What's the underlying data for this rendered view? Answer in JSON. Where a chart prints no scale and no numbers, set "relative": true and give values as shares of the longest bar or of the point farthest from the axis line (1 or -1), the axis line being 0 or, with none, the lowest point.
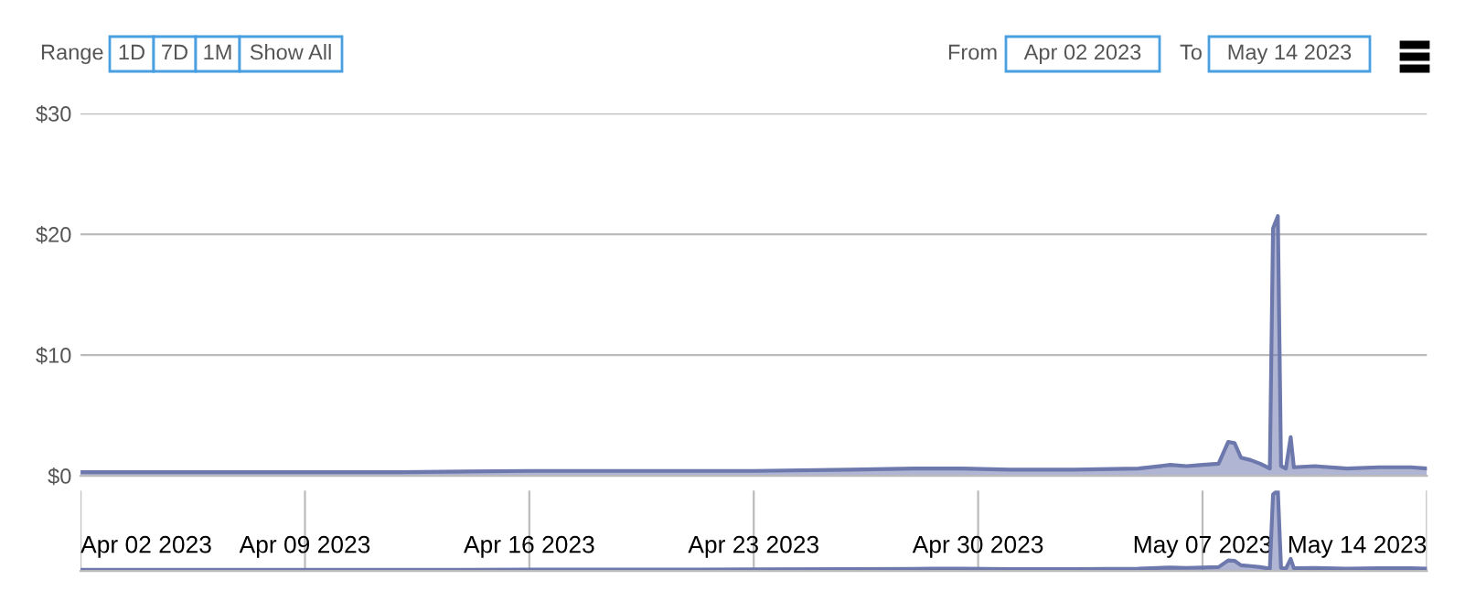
{
  "chart_data": [
    {
      "type": "area",
      "x": [
        "2023-04-02",
        "2023-04-05",
        "2023-04-09",
        "2023-04-12",
        "2023-04-16",
        "2023-04-20",
        "2023-04-23",
        "2023-04-26",
        "2023-04-28",
        "2023-04-29T12:00",
        "2023-05-01",
        "2023-05-03",
        "2023-05-05",
        "2023-05-06",
        "2023-05-06T12:00",
        "2023-05-07",
        "2023-05-07T12:00",
        "2023-05-07T19:12",
        "2023-05-08",
        "2023-05-08T04:48",
        "2023-05-08T12:00",
        "2023-05-08T19:12",
        "2023-05-09T02:24",
        "2023-05-09T04:48",
        "2023-05-09T08:24",
        "2023-05-09T10:48",
        "2023-05-09T14:24",
        "2023-05-09T18:00",
        "2023-05-09T20:24",
        "2023-05-10T12:00",
        "2023-05-11T12:00",
        "2023-05-12T12:00",
        "2023-05-13T12:00",
        "2023-05-14"
      ],
      "series": [
        {
          "color": "#6d78ad",
          "values": [
            0.3,
            0.3,
            0.3,
            0.3,
            0.4,
            0.4,
            0.4,
            0.5,
            0.6,
            0.6,
            0.5,
            0.5,
            0.6,
            0.9,
            0.8,
            0.9,
            1.0,
            2.8,
            2.7,
            1.5,
            1.3,
            1.0,
            0.6,
            20.5,
            21.5,
            0.8,
            0.6,
            3.2,
            0.7,
            0.8,
            0.6,
            0.7,
            0.7,
            0.6
          ]
        }
      ],
      "xlim": [
        "2023-04-02",
        "2023-05-14"
      ],
      "ylim": [
        0,
        30
      ],
      "yticks": [
        {
          "value": 0,
          "label": "$0"
        },
        {
          "value": 10,
          "label": "$10"
        },
        {
          "value": 20,
          "label": "$20"
        },
        {
          "value": 30,
          "label": "$30"
        }
      ],
      "grid": "y",
      "tick_labels": "y",
      "annotations": [
        "Range",
        "1D",
        "7D",
        "1M",
        "Show All",
        "From",
        "Apr 02 2023",
        "To",
        "May 14 2023"
      ]
    },
    {
      "type": "area",
      "relative": true,
      "x": [
        "2023-04-02",
        "2023-04-05",
        "2023-04-09",
        "2023-04-12",
        "2023-04-16",
        "2023-04-20",
        "2023-04-23",
        "2023-04-26",
        "2023-04-28",
        "2023-04-29T12:00",
        "2023-05-01",
        "2023-05-03",
        "2023-05-05",
        "2023-05-06",
        "2023-05-06T12:00",
        "2023-05-07",
        "2023-05-07T12:00",
        "2023-05-07T19:12",
        "2023-05-08",
        "2023-05-08T04:48",
        "2023-05-08T12:00",
        "2023-05-08T19:12",
        "2023-05-09T02:24",
        "2023-05-09T04:48",
        "2023-05-09T08:24",
        "2023-05-09T10:48",
        "2023-05-09T14:24",
        "2023-05-09T18:00",
        "2023-05-09T20:24",
        "2023-05-10T12:00",
        "2023-05-11T12:00",
        "2023-05-12T12:00",
        "2023-05-13T12:00",
        "2023-05-14"
      ],
      "series": [
        {
          "color": "#6d78ad",
          "values": [
            0.014,
            0.014,
            0.014,
            0.014,
            0.016,
            0.016,
            0.019,
            0.021,
            0.026,
            0.028,
            0.023,
            0.021,
            0.028,
            0.042,
            0.037,
            0.042,
            0.047,
            0.13,
            0.126,
            0.07,
            0.06,
            0.047,
            0.028,
            0.953,
            1,
            0.037,
            0.028,
            0.149,
            0.033,
            0.037,
            0.028,
            0.033,
            0.033,
            0.028
          ]
        }
      ],
      "xlim": [
        "2023-04-02",
        "2023-05-14"
      ],
      "xticks": [
        {
          "value": "2023-04-02",
          "label": "Apr 02 2023"
        },
        {
          "value": "2023-04-09",
          "label": "Apr 09 2023"
        },
        {
          "value": "2023-04-16",
          "label": "Apr 16 2023"
        },
        {
          "value": "2023-04-23",
          "label": "Apr 23 2023"
        },
        {
          "value": "2023-04-30",
          "label": "Apr 30 2023"
        },
        {
          "value": "2023-05-07",
          "label": "May 07 2023"
        },
        {
          "value": "2023-05-14",
          "label": "May 14 2023"
        }
      ],
      "grid": "x",
      "tick_labels": "x"
    }
  ]
}
